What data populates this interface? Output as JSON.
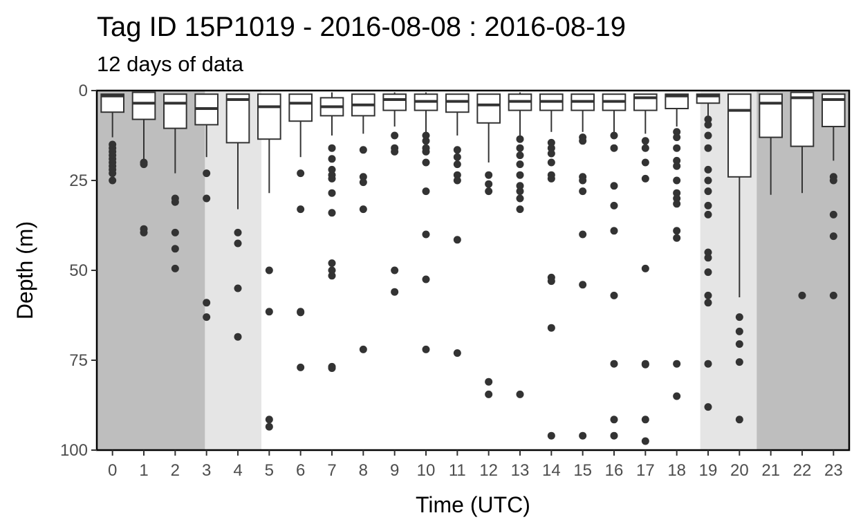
{
  "chart_data": {
    "type": "boxplot",
    "title": "Tag ID 15P1019 - 2016-08-08 : 2016-08-19",
    "subtitle": "12 days of data",
    "xlabel": "Time (UTC)",
    "ylabel": "Depth (m)",
    "ylim": [
      0,
      100
    ],
    "y_reversed": true,
    "y_ticks": [
      "0",
      "25",
      "50",
      "75",
      "100"
    ],
    "categories": [
      "0",
      "1",
      "2",
      "3",
      "4",
      "5",
      "6",
      "7",
      "8",
      "9",
      "10",
      "11",
      "12",
      "13",
      "14",
      "15",
      "16",
      "17",
      "18",
      "19",
      "20",
      "21",
      "22",
      "23"
    ],
    "shading": {
      "night_color": "#bebebe",
      "twilight_color": "#e5e5e5",
      "day_color": "#ffffff",
      "bands": [
        {
          "type": "night",
          "start": -0.5,
          "end": 2.95
        },
        {
          "type": "twilight",
          "start": 2.95,
          "end": 4.75
        },
        {
          "type": "twilight",
          "start": 18.75,
          "end": 20.55
        },
        {
          "type": "night",
          "start": 20.55,
          "end": 23.5
        }
      ]
    },
    "series": [
      {
        "hour": 0,
        "q1": 1,
        "median": 1.5,
        "q3": 6,
        "whisker_low": 1,
        "whisker_high": 13,
        "outliers": [
          15,
          16,
          17,
          18,
          19,
          20,
          21,
          22,
          23,
          25
        ]
      },
      {
        "hour": 1,
        "q1": 0.5,
        "median": 3.5,
        "q3": 8,
        "whisker_low": 0.5,
        "whisker_high": 19.5,
        "outliers": [
          20,
          20.5,
          38.5,
          39.5
        ]
      },
      {
        "hour": 2,
        "q1": 1,
        "median": 3.5,
        "q3": 10.5,
        "whisker_low": 1,
        "whisker_high": 23,
        "outliers": [
          30,
          31,
          39.5,
          44,
          49.5
        ]
      },
      {
        "hour": 3,
        "q1": 1,
        "median": 5,
        "q3": 9.5,
        "whisker_low": 1,
        "whisker_high": 18.5,
        "outliers": [
          23,
          30,
          59,
          63
        ]
      },
      {
        "hour": 4,
        "q1": 1,
        "median": 2.5,
        "q3": 14.5,
        "whisker_low": 1,
        "whisker_high": 33,
        "outliers": [
          39.5,
          42.5,
          55,
          68.5
        ]
      },
      {
        "hour": 5,
        "q1": 1,
        "median": 4.5,
        "q3": 13.5,
        "whisker_low": 1,
        "whisker_high": 28.5,
        "outliers": [
          50,
          61.5,
          91.5,
          93.5
        ]
      },
      {
        "hour": 6,
        "q1": 1,
        "median": 3.5,
        "q3": 8.5,
        "whisker_low": 1,
        "whisker_high": 18.5,
        "outliers": [
          23,
          33,
          61.5,
          61.7,
          77
        ]
      },
      {
        "hour": 7,
        "q1": 2,
        "median": 4.5,
        "q3": 7,
        "whisker_low": 0.5,
        "whisker_high": 12.5,
        "outliers": [
          16,
          19,
          22,
          23.5,
          24.5,
          28.5,
          34,
          48,
          50,
          51.5,
          76.8,
          77.2
        ]
      },
      {
        "hour": 8,
        "q1": 1,
        "median": 4,
        "q3": 7,
        "whisker_low": 1,
        "whisker_high": 12,
        "outliers": [
          16.5,
          24,
          25.5,
          33,
          72
        ]
      },
      {
        "hour": 9,
        "q1": 1,
        "median": 2.5,
        "q3": 5.5,
        "whisker_low": 0.5,
        "whisker_high": 10,
        "outliers": [
          12.5,
          16,
          17,
          50,
          56
        ]
      },
      {
        "hour": 10,
        "q1": 1,
        "median": 3,
        "q3": 5.5,
        "whisker_low": 0.5,
        "whisker_high": 12,
        "outliers": [
          12.5,
          14,
          16,
          17,
          20,
          28,
          40,
          52.5,
          72
        ]
      },
      {
        "hour": 11,
        "q1": 1,
        "median": 3,
        "q3": 6,
        "whisker_low": 1,
        "whisker_high": 12.5,
        "outliers": [
          16.5,
          18.5,
          20.5,
          23.5,
          25,
          41.5,
          73
        ]
      },
      {
        "hour": 12,
        "q1": 1,
        "median": 4,
        "q3": 9,
        "whisker_low": 1,
        "whisker_high": 20,
        "outliers": [
          23.5,
          26,
          28,
          81,
          84.5
        ]
      },
      {
        "hour": 13,
        "q1": 1,
        "median": 3,
        "q3": 5.5,
        "whisker_low": 0.5,
        "whisker_high": 12.5,
        "outliers": [
          13.5,
          16,
          18,
          20.5,
          23.5,
          26.5,
          28,
          30,
          33,
          84.5
        ]
      },
      {
        "hour": 14,
        "q1": 1,
        "median": 3,
        "q3": 5.5,
        "whisker_low": 1,
        "whisker_high": 11.5,
        "outliers": [
          14.5,
          16,
          17.5,
          20,
          23.5,
          24.5,
          52,
          53,
          66,
          96
        ]
      },
      {
        "hour": 15,
        "q1": 1,
        "median": 3,
        "q3": 5.5,
        "whisker_low": 1,
        "whisker_high": 11.5,
        "outliers": [
          13,
          14,
          24,
          25,
          28,
          40,
          54,
          96
        ]
      },
      {
        "hour": 16,
        "q1": 1,
        "median": 3,
        "q3": 5.5,
        "whisker_low": 1,
        "whisker_high": 11.5,
        "outliers": [
          12.5,
          16,
          26.5,
          32,
          39,
          57,
          76,
          91.5,
          96
        ]
      },
      {
        "hour": 17,
        "q1": 1,
        "median": 2,
        "q3": 5.5,
        "whisker_low": 1,
        "whisker_high": 12,
        "outliers": [
          14,
          16,
          20,
          24.5,
          49.5,
          76,
          76.2,
          91.5,
          97.5
        ]
      },
      {
        "hour": 18,
        "q1": 1,
        "median": 1.5,
        "q3": 5,
        "whisker_low": 1,
        "whisker_high": 10,
        "outliers": [
          11.5,
          13,
          16,
          19.5,
          21,
          25,
          28.5,
          30,
          31.5,
          39,
          41,
          76,
          85
        ]
      },
      {
        "hour": 19,
        "q1": 1,
        "median": 1.5,
        "q3": 3.5,
        "whisker_low": 1,
        "whisker_high": 7,
        "outliers": [
          8,
          9.5,
          12.5,
          16,
          22,
          25,
          28,
          32,
          34.5,
          45,
          46.5,
          50.5,
          57,
          59,
          76,
          88
        ]
      },
      {
        "hour": 20,
        "q1": 1,
        "median": 5.5,
        "q3": 24,
        "whisker_low": 1,
        "whisker_high": 57.5,
        "outliers": [
          63,
          67,
          70.5,
          75.5,
          91.5
        ]
      },
      {
        "hour": 21,
        "q1": 1,
        "median": 3.5,
        "q3": 13,
        "whisker_low": 1,
        "whisker_high": 29,
        "outliers": []
      },
      {
        "hour": 22,
        "q1": 0.5,
        "median": 2,
        "q3": 15.5,
        "whisker_low": 0.5,
        "whisker_high": 28.5,
        "outliers": [
          57
        ]
      },
      {
        "hour": 23,
        "q1": 1,
        "median": 2.5,
        "q3": 10,
        "whisker_low": 1,
        "whisker_high": 19.5,
        "outliers": [
          24,
          25,
          34.5,
          40.5,
          57
        ]
      }
    ]
  }
}
